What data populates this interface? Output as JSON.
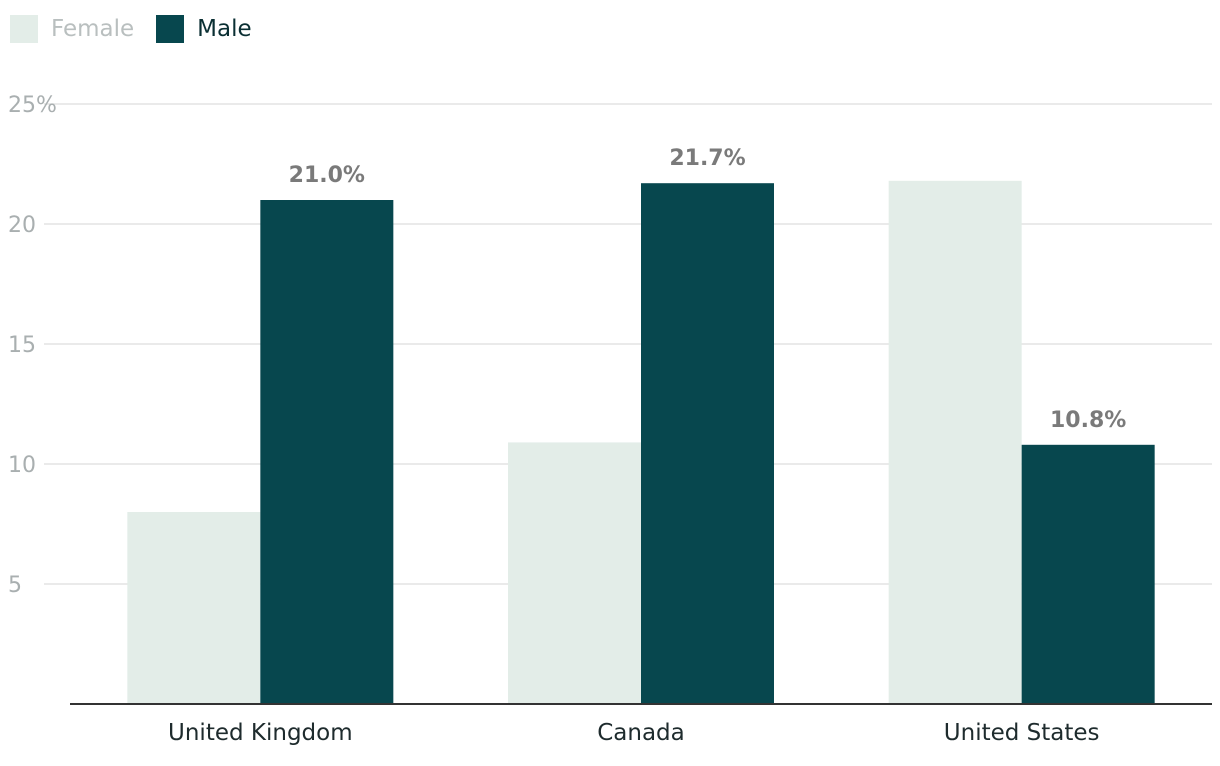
{
  "chart_data": {
    "type": "bar",
    "categories": [
      "United Kingdom",
      "Canada",
      "United States"
    ],
    "series": [
      {
        "name": "Female",
        "values": [
          8.0,
          10.9,
          21.8
        ],
        "color": "#e3ede8",
        "data_labels": [
          "",
          "",
          ""
        ]
      },
      {
        "name": "Male",
        "values": [
          21.0,
          21.7,
          10.8
        ],
        "color": "#07474e",
        "data_labels": [
          "21.0%",
          "21.7%",
          "10.8%"
        ]
      }
    ],
    "title": "",
    "xlabel": "",
    "ylabel": "",
    "ylim": [
      0,
      25
    ],
    "y_ticks": [
      5,
      10,
      15,
      20,
      25
    ],
    "y_tick_labels": [
      "5",
      "10",
      "15",
      "20",
      "25%"
    ],
    "grid": true,
    "legend_position": "top-left"
  }
}
